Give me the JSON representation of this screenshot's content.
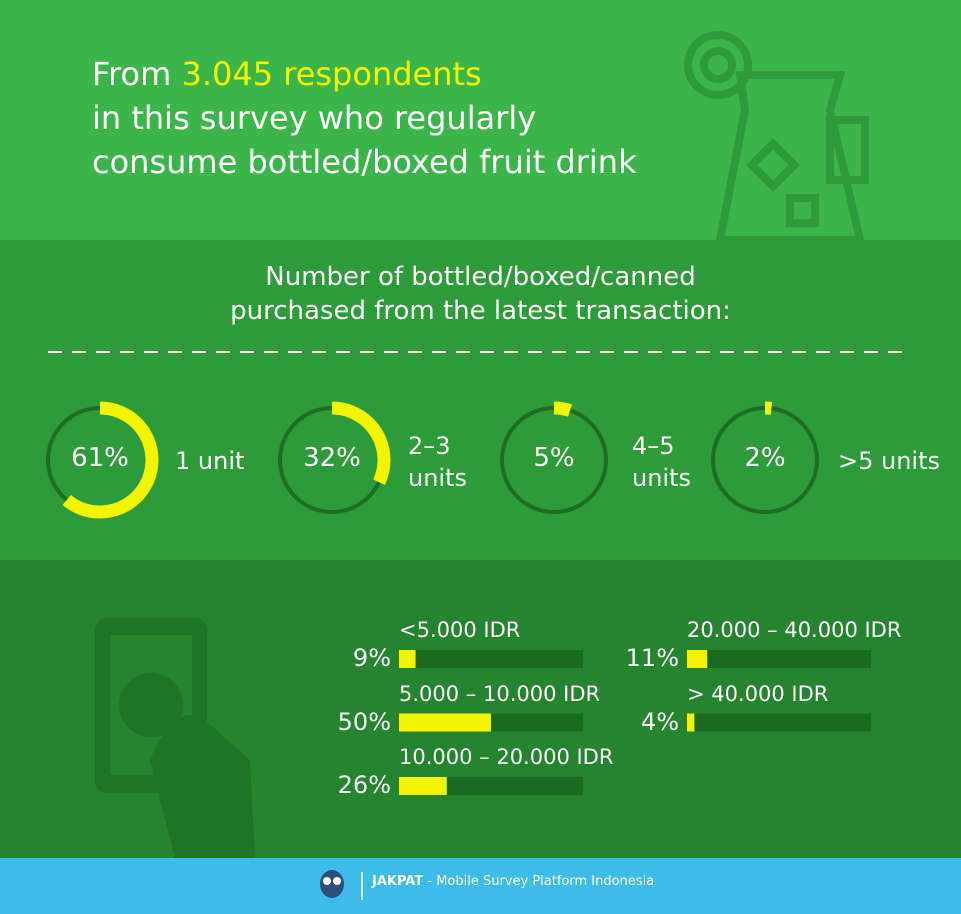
{
  "header": {
    "title_prefix": "From",
    "title_highlight": "3.045 respondents",
    "title_lines": [
      "in this survey who regularly",
      "consume bottled/boxed fruit drink"
    ]
  },
  "chart_data": [
    {
      "type": "donut",
      "title": [
        "Number of bottled/boxed/canned",
        "purchased from the latest transaction:"
      ],
      "categories": [
        "1 unit",
        "2–3 units",
        "4–5 units",
        ">5 units"
      ],
      "values": [
        61,
        32,
        5,
        2
      ],
      "value_labels": [
        "61%",
        "32%",
        "5%",
        "2%"
      ],
      "color": "#f4f400"
    },
    {
      "type": "bar",
      "orientation": "horizontal",
      "categories": [
        "<5.000 IDR",
        "5.000 – 10.000 IDR",
        "10.000 – 20.000 IDR",
        "20.000 – 40.000 IDR",
        "> 40.000 IDR"
      ],
      "values": [
        9,
        50,
        26,
        11,
        4
      ],
      "value_labels": [
        "9%",
        "50%",
        "26%",
        "11%",
        "4%"
      ],
      "color": "#f4f400"
    }
  ],
  "footer": {
    "brand": "JAKPAT",
    "tagline": "- Mobile Survey Platform Indonesia"
  }
}
